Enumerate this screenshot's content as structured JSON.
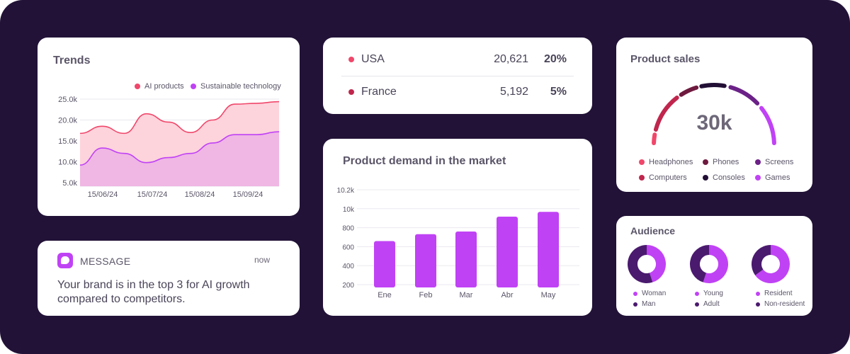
{
  "trends": {
    "title": "Trends",
    "chart_data": {
      "type": "area",
      "title": "Trends",
      "x_ticks": [
        "15/06/24",
        "15/07/24",
        "15/08/24",
        "15/09/24"
      ],
      "y_ticks": [
        "25.0k",
        "20.0k",
        "15.0k",
        "10.0k",
        "5.0k"
      ],
      "ylim": [
        5000,
        25000
      ],
      "grid": true,
      "legend_position": "top-right",
      "series": [
        {
          "name": "AI products",
          "color": "#f0476a",
          "fill": "#fdd3dc",
          "values": [
            16800,
            18500,
            16800,
            21500,
            19500,
            17000,
            20000,
            23800,
            24000,
            24400
          ]
        },
        {
          "name": "Sustainable technology",
          "color": "#c042f5",
          "fill": "#f0b6e4",
          "values": [
            9200,
            13300,
            12000,
            9800,
            11000,
            12000,
            14500,
            16500,
            16500,
            17200
          ]
        }
      ]
    }
  },
  "countries": {
    "rows": [
      {
        "name": "USA",
        "value": "20,621",
        "percent": "20%",
        "color": "#f0476a"
      },
      {
        "name": "France",
        "value": "5,192",
        "percent": "5%",
        "color": "#c0264d"
      }
    ]
  },
  "product_sales": {
    "title": "Product sales",
    "center_value": "30k",
    "chart_data": {
      "type": "pie",
      "style": "semicircle-gauge",
      "center_label": "30k",
      "slices": [
        {
          "label": "Headphones",
          "color": "#f0476a"
        },
        {
          "label": "Computers",
          "color": "#c0264d"
        },
        {
          "label": "Phones",
          "color": "#6e1a3e"
        },
        {
          "label": "Consoles",
          "color": "#220f35"
        },
        {
          "label": "Screens",
          "color": "#6b2187"
        },
        {
          "label": "Games",
          "color": "#c042f5"
        }
      ]
    },
    "legend": [
      {
        "label": "Headphones",
        "color": "#f0476a"
      },
      {
        "label": "Phones",
        "color": "#6e1a3e"
      },
      {
        "label": "Screens",
        "color": "#6b2187"
      },
      {
        "label": "Computers",
        "color": "#c0264d"
      },
      {
        "label": "Consoles",
        "color": "#220f35"
      },
      {
        "label": "Games",
        "color": "#c042f5"
      }
    ]
  },
  "demand": {
    "title": "Product demand in the market",
    "chart_data": {
      "type": "bar",
      "title": "Product demand in the market",
      "categories": [
        "Ene",
        "Feb",
        "Mar",
        "Abr",
        "May"
      ],
      "values": [
        610,
        675,
        700,
        840,
        885
      ],
      "y_ticks": [
        "10.2k",
        "10k",
        "800",
        "600",
        "400",
        "200"
      ],
      "color": "#c042f5",
      "grid": true
    }
  },
  "audience": {
    "title": "Audience",
    "chart_data": [
      {
        "type": "pie",
        "style": "donut",
        "slices": [
          {
            "label": "Woman",
            "value": 45,
            "color": "#c042f5"
          },
          {
            "label": "Man",
            "value": 55,
            "color": "#4a1a6e"
          }
        ]
      },
      {
        "type": "pie",
        "style": "donut",
        "slices": [
          {
            "label": "Young",
            "value": 55,
            "color": "#c042f5"
          },
          {
            "label": "Adult",
            "value": 45,
            "color": "#4a1a6e"
          }
        ]
      },
      {
        "type": "pie",
        "style": "donut",
        "slices": [
          {
            "label": "Resident",
            "value": 65,
            "color": "#c042f5"
          },
          {
            "label": "Non-resident",
            "value": 35,
            "color": "#4a1a6e"
          }
        ]
      }
    ]
  },
  "message": {
    "label": "MESSAGE",
    "time": "now",
    "body": "Your brand is in the top 3 for AI growth compared to competitors."
  }
}
